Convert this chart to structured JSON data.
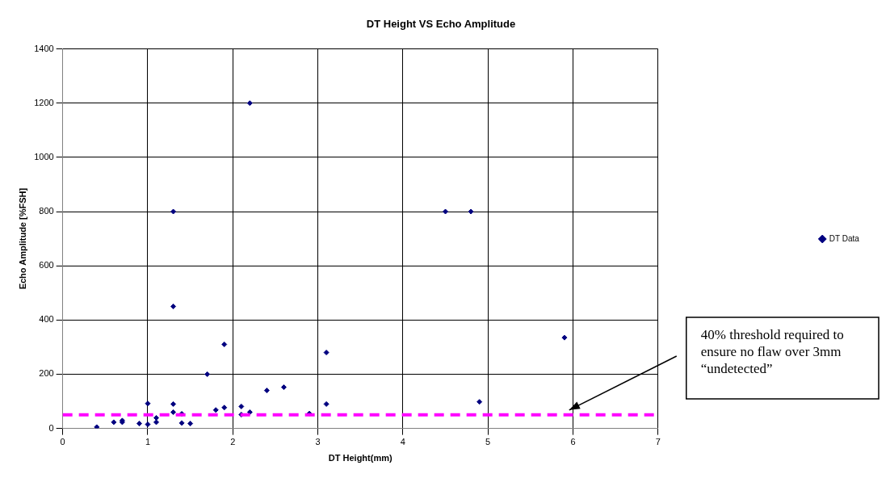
{
  "chart_data": {
    "type": "scatter",
    "title": "DT Height VS Echo Amplitude",
    "xlabel": "DT Height(mm)",
    "ylabel": "Echo Amplitude [%FSH]",
    "series": [
      {
        "name": "DT Data",
        "color": "#000080",
        "x": [
          0.4,
          0.6,
          0.7,
          0.7,
          0.9,
          1.0,
          1.0,
          1.1,
          1.1,
          1.3,
          1.3,
          1.3,
          1.3,
          1.4,
          1.4,
          1.5,
          1.7,
          1.8,
          1.9,
          1.9,
          2.1,
          2.1,
          2.2,
          2.2,
          2.4,
          2.6,
          2.9,
          3.1,
          3.1,
          4.5,
          4.8,
          4.9,
          5.9
        ],
        "values": [
          5,
          23,
          29,
          23,
          18,
          92,
          15,
          39,
          23,
          90,
          60,
          450,
          800,
          54,
          20,
          18,
          200,
          68,
          77,
          310,
          81,
          51,
          60,
          1200,
          140,
          152,
          55,
          90,
          280,
          800,
          800,
          98,
          335
        ]
      }
    ],
    "xlim": [
      0,
      7
    ],
    "xticks": [
      0,
      1,
      2,
      3,
      4,
      5,
      6,
      7
    ],
    "ylim": [
      0,
      1400
    ],
    "yticks": [
      0,
      200,
      400,
      600,
      800,
      1000,
      1200,
      1400
    ],
    "grid": true,
    "legend": "right",
    "marker": "diamond",
    "ref_lines": [
      {
        "axis": "y",
        "value": 50,
        "color": "#ff00ff",
        "line_style": "dashed"
      }
    ],
    "annotations": [
      "40% threshold required to ensure no flaw over 3mm “undetected”"
    ]
  }
}
